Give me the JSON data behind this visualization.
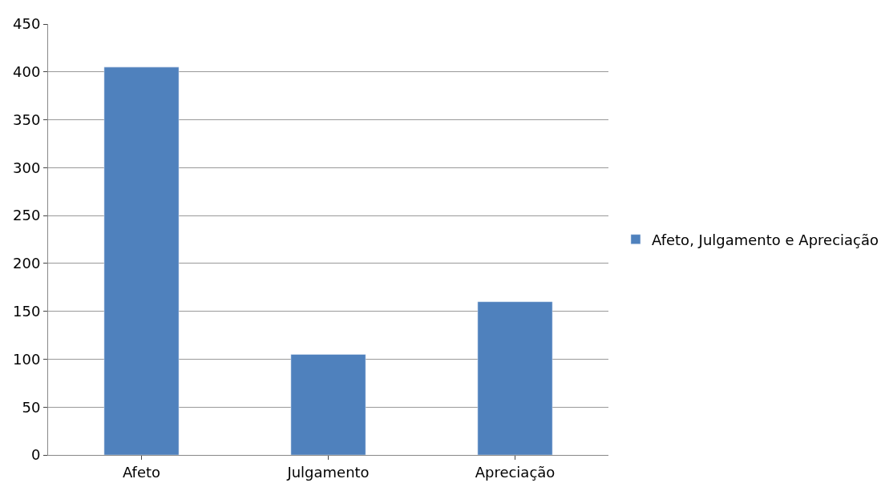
{
  "chart_data": {
    "type": "bar",
    "categories": [
      "Afeto",
      "Julgamento",
      "Apreciação"
    ],
    "series": [
      {
        "name": "Afeto, Julgamento e Apreciação",
        "color": "#4f81bd",
        "values": [
          405,
          105,
          160
        ]
      }
    ],
    "ylim": [
      0,
      450
    ],
    "yticks": [
      0,
      50,
      100,
      150,
      200,
      250,
      300,
      350,
      400,
      450
    ],
    "grid": "y",
    "legend": "right"
  }
}
